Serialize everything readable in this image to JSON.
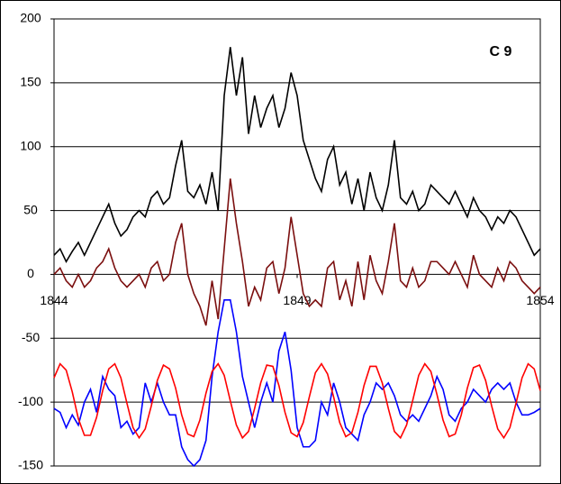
{
  "chart_data": {
    "type": "line",
    "annotation": "C 9",
    "x": [
      1844,
      1844.125,
      1844.25,
      1844.375,
      1844.5,
      1844.625,
      1844.75,
      1844.875,
      1845,
      1845.125,
      1845.25,
      1845.375,
      1845.5,
      1845.625,
      1845.75,
      1845.875,
      1846,
      1846.125,
      1846.25,
      1846.375,
      1846.5,
      1846.625,
      1846.75,
      1846.875,
      1847,
      1847.125,
      1847.25,
      1847.375,
      1847.5,
      1847.625,
      1847.75,
      1847.875,
      1848,
      1848.125,
      1848.25,
      1848.375,
      1848.5,
      1848.625,
      1848.75,
      1848.875,
      1849,
      1849.125,
      1849.25,
      1849.375,
      1849.5,
      1849.625,
      1849.75,
      1849.875,
      1850,
      1850.125,
      1850.25,
      1850.375,
      1850.5,
      1850.625,
      1850.75,
      1850.875,
      1851,
      1851.125,
      1851.25,
      1851.375,
      1851.5,
      1851.625,
      1851.75,
      1851.875,
      1852,
      1852.125,
      1852.25,
      1852.375,
      1852.5,
      1852.625,
      1852.75,
      1852.875,
      1853,
      1853.125,
      1853.25,
      1853.375,
      1853.5,
      1853.625,
      1853.75,
      1853.875,
      1854
    ],
    "series": [
      {
        "color": "#000000",
        "values": [
          15,
          20,
          10,
          18,
          25,
          15,
          25,
          35,
          45,
          55,
          40,
          30,
          35,
          45,
          50,
          45,
          60,
          65,
          55,
          60,
          85,
          105,
          65,
          60,
          70,
          55,
          80,
          50,
          140,
          178,
          140,
          170,
          110,
          140,
          115,
          130,
          140,
          115,
          130,
          158,
          140,
          105,
          90,
          75,
          65,
          90,
          100,
          70,
          80,
          55,
          75,
          50,
          80,
          60,
          50,
          70,
          105,
          60,
          55,
          65,
          50,
          55,
          70,
          65,
          60,
          55,
          65,
          55,
          45,
          60,
          50,
          45,
          35,
          45,
          40,
          50,
          45,
          35,
          25,
          15,
          20
        ]
      },
      {
        "color": "#7b0f0f",
        "values": [
          0,
          5,
          -5,
          -10,
          0,
          -10,
          -5,
          5,
          10,
          20,
          5,
          -5,
          -10,
          -5,
          0,
          -10,
          5,
          10,
          -5,
          0,
          25,
          40,
          0,
          -15,
          -25,
          -40,
          -5,
          -35,
          20,
          75,
          40,
          10,
          -25,
          -10,
          -20,
          5,
          10,
          -15,
          5,
          45,
          15,
          -15,
          -25,
          -20,
          -25,
          5,
          10,
          -20,
          -5,
          -25,
          10,
          -20,
          15,
          -5,
          -15,
          10,
          40,
          -5,
          -10,
          5,
          -10,
          -5,
          10,
          10,
          5,
          0,
          10,
          0,
          -10,
          15,
          0,
          -5,
          -10,
          5,
          -5,
          10,
          5,
          -5,
          -10,
          -15,
          -10
        ]
      },
      {
        "color": "#0000ff",
        "values": [
          -105,
          -108,
          -120,
          -110,
          -118,
          -100,
          -90,
          -108,
          -80,
          -90,
          -95,
          -120,
          -115,
          -125,
          -120,
          -85,
          -100,
          -85,
          -100,
          -110,
          -110,
          -135,
          -145,
          -150,
          -145,
          -130,
          -80,
          -45,
          -20,
          -20,
          -45,
          -80,
          -100,
          -120,
          -100,
          -85,
          -100,
          -60,
          -45,
          -75,
          -120,
          -135,
          -135,
          -130,
          -100,
          -110,
          -85,
          -100,
          -120,
          -125,
          -130,
          -110,
          -100,
          -85,
          -90,
          -85,
          -95,
          -110,
          -115,
          -110,
          -115,
          -105,
          -95,
          -80,
          -90,
          -110,
          -115,
          -105,
          -100,
          -90,
          -95,
          -100,
          -90,
          -85,
          -90,
          -85,
          -100,
          -110,
          -110,
          -108,
          -105
        ]
      },
      {
        "color": "#ff0000",
        "values": [
          -81,
          -70,
          -75,
          -92,
          -113,
          -126,
          -126,
          -112,
          -91,
          -74,
          -70,
          -81,
          -101,
          -120,
          -128,
          -121,
          -103,
          -83,
          -71,
          -74,
          -89,
          -110,
          -125,
          -127,
          -114,
          -93,
          -76,
          -70,
          -79,
          -99,
          -118,
          -128,
          -123,
          -105,
          -85,
          -71,
          -72,
          -87,
          -108,
          -124,
          -127,
          -116,
          -96,
          -77,
          -70,
          -78,
          -96,
          -116,
          -127,
          -124,
          -108,
          -87,
          -72,
          -72,
          -85,
          -105,
          -123,
          -128,
          -118,
          -99,
          -79,
          -70,
          -76,
          -94,
          -114,
          -127,
          -125,
          -110,
          -89,
          -73,
          -71,
          -83,
          -103,
          -121,
          -128,
          -120,
          -101,
          -81,
          -70,
          -74,
          -91
        ]
      }
    ],
    "xlim": [
      1844,
      1854
    ],
    "xticks": [
      1844,
      1849,
      1854
    ],
    "ylim": [
      -150,
      200
    ],
    "yticks": [
      -150,
      -100,
      -50,
      0,
      50,
      100,
      150,
      200
    ],
    "grid": true
  }
}
